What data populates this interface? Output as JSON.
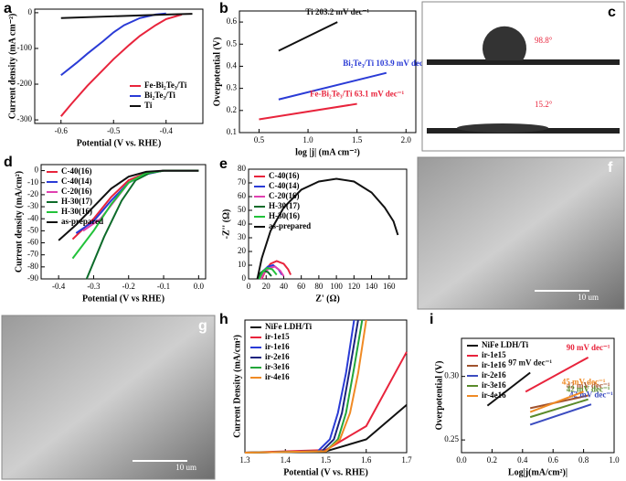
{
  "chart_data": [
    {
      "type": "line",
      "label": "a",
      "xlabel": "Potential (V vs. RHE)",
      "ylabel": "Current density (mA cm⁻²)",
      "xlim": [
        -0.65,
        -0.33
      ],
      "xticks": [
        -0.6,
        -0.5,
        -0.4
      ],
      "ylim": [
        -310,
        10
      ],
      "yticks": [
        0,
        -100,
        -200,
        -300
      ],
      "legend": "lower-right",
      "series": [
        {
          "name": "Fe-Bi₂Te₃/Ti",
          "color": "#e8243c",
          "x": [
            -0.6,
            -0.58,
            -0.55,
            -0.52,
            -0.5,
            -0.47,
            -0.45,
            -0.42,
            -0.4,
            -0.37
          ],
          "values": [
            -290,
            -255,
            -205,
            -160,
            -130,
            -90,
            -65,
            -35,
            -18,
            -5
          ]
        },
        {
          "name": "Bi₂Te₃/Ti",
          "color": "#2a3bd6",
          "x": [
            -0.6,
            -0.57,
            -0.55,
            -0.52,
            -0.5,
            -0.48,
            -0.45,
            -0.42,
            -0.4
          ],
          "values": [
            -175,
            -140,
            -115,
            -80,
            -55,
            -35,
            -15,
            -5,
            -2
          ]
        },
        {
          "name": "Ti",
          "color": "#111111",
          "x": [
            -0.6,
            -0.5,
            -0.4,
            -0.35
          ],
          "values": [
            -15,
            -10,
            -5,
            -3
          ]
        }
      ]
    },
    {
      "type": "line",
      "label": "b",
      "xlabel": "log |j| (mA cm⁻²)",
      "ylabel": "Overpotential (V)",
      "xlim": [
        0.3,
        2.1
      ],
      "xticks": [
        0.5,
        {
          "value": 1,
          "label": "1.0"
        },
        1.5,
        {
          "value": 2,
          "label": "2.0"
        }
      ],
      "ylim": [
        0.1,
        0.65
      ],
      "yticks": [
        0.1,
        0.2,
        0.3,
        0.4,
        0.5,
        0.6
      ],
      "series": [
        {
          "color": "#111111",
          "x": [
            0.7,
            1.3
          ],
          "values": [
            0.47,
            0.6
          ]
        },
        {
          "color": "#2a3bd6",
          "x": [
            0.7,
            1.8
          ],
          "values": [
            0.25,
            0.37
          ]
        },
        {
          "color": "#e8243c",
          "x": [
            0.5,
            1.5
          ],
          "values": [
            0.16,
            0.23
          ]
        }
      ],
      "annotations": [
        "Ti 203.2 mV dec⁻¹",
        "Bi₂Te₃/Ti 103.9 mV dec⁻¹",
        "Fe-Bi₂Te₃/Ti 63.1 mV dec⁻¹"
      ]
    },
    {
      "type": "line",
      "label": "d",
      "xlabel": "Potential (V vs RHE)",
      "ylabel": "Current density (mA/cm²)",
      "xlim": [
        -0.45,
        0.02
      ],
      "xticks": [
        -0.4,
        -0.3,
        -0.2,
        -0.1,
        {
          "value": 0,
          "label": "0.0"
        }
      ],
      "ylim": [
        -90,
        5
      ],
      "yticks": [
        0,
        -10,
        -20,
        -30,
        -40,
        -50,
        -60,
        -70,
        -80,
        -90
      ],
      "legend": "upper-left",
      "series": [
        {
          "name": "C-40(16)",
          "color": "#e8243c",
          "x": [
            -0.36,
            -0.3,
            -0.25,
            -0.2,
            -0.15,
            -0.1,
            0
          ],
          "values": [
            -57,
            -40,
            -22,
            -8,
            -2,
            0,
            0
          ]
        },
        {
          "name": "C-40(14)",
          "color": "#2a3bd6",
          "x": [
            -0.35,
            -0.3,
            -0.25,
            -0.2,
            -0.15,
            -0.1,
            0
          ],
          "values": [
            -52,
            -42,
            -25,
            -10,
            -3,
            0,
            0
          ]
        },
        {
          "name": "C-20(16)",
          "color": "#e040b0",
          "x": [
            -0.33,
            -0.28,
            -0.24,
            -0.2,
            -0.15,
            -0.1,
            0
          ],
          "values": [
            -50,
            -40,
            -25,
            -10,
            -2,
            0,
            0
          ]
        },
        {
          "name": "H-30(17)",
          "color": "#0d6b2a",
          "x": [
            -0.32,
            -0.27,
            -0.22,
            -0.18,
            -0.14,
            -0.1,
            0
          ],
          "values": [
            -90,
            -55,
            -25,
            -8,
            -2,
            0,
            0
          ]
        },
        {
          "name": "H-30(16)",
          "color": "#22c23a",
          "x": [
            -0.36,
            -0.3,
            -0.25,
            -0.2,
            -0.15,
            -0.1,
            0
          ],
          "values": [
            -73,
            -50,
            -28,
            -10,
            -2,
            0,
            0
          ]
        },
        {
          "name": "as-prepared",
          "color": "#111111",
          "x": [
            -0.4,
            -0.35,
            -0.3,
            -0.25,
            -0.2,
            -0.15,
            -0.1,
            0
          ],
          "values": [
            -58,
            -45,
            -30,
            -15,
            -5,
            -1,
            0,
            0
          ]
        }
      ]
    },
    {
      "type": "line",
      "label": "e",
      "xlabel": "Z' (Ω)",
      "ylabel": "-Z'' (Ω)",
      "xlim": [
        0,
        180
      ],
      "xticks": [
        0,
        20,
        40,
        60,
        80,
        100,
        120,
        140,
        160
      ],
      "ylim": [
        0,
        80
      ],
      "yticks": [
        0,
        10,
        20,
        30,
        40,
        50,
        60,
        70,
        80
      ],
      "legend": "upper-left",
      "series": [
        {
          "name": "C-40(16)",
          "color": "#e8243c",
          "x": [
            15,
            20,
            25,
            32,
            40,
            45,
            48
          ],
          "values": [
            0,
            7,
            11,
            13,
            11,
            7,
            3
          ]
        },
        {
          "name": "C-40(14)",
          "color": "#2a3bd6",
          "x": [
            12,
            17,
            22,
            28,
            34,
            38
          ],
          "values": [
            0,
            6,
            9,
            10,
            7,
            3
          ]
        },
        {
          "name": "C-20(16)",
          "color": "#e040b0",
          "x": [
            14,
            18,
            24,
            30,
            36,
            40
          ],
          "values": [
            0,
            5,
            8,
            9,
            6,
            2
          ]
        },
        {
          "name": "H-30(17)",
          "color": "#0d6b2a",
          "x": [
            10,
            13,
            17,
            22,
            26
          ],
          "values": [
            0,
            4,
            6,
            5,
            2
          ]
        },
        {
          "name": "H-30(16)",
          "color": "#22c23a",
          "x": [
            12,
            16,
            21,
            27,
            32
          ],
          "values": [
            0,
            5,
            8,
            7,
            3
          ]
        },
        {
          "name": "as-prepared",
          "color": "#111111",
          "x": [
            10,
            15,
            25,
            40,
            60,
            80,
            100,
            120,
            140,
            155,
            165,
            170
          ],
          "values": [
            0,
            15,
            35,
            52,
            65,
            71,
            73,
            71,
            63,
            52,
            42,
            32
          ]
        }
      ]
    },
    {
      "type": "line",
      "label": "h",
      "xlabel": "Potential (V vs. RHE)",
      "ylabel": "Current Density (mA/cm²)",
      "xlim": [
        1.3,
        1.7
      ],
      "xticks": [
        1.3,
        1.4,
        1.5,
        1.6,
        1.7
      ],
      "ylim": [
        0,
        50
      ],
      "legend": "upper-left",
      "series": [
        {
          "name": "NiFe LDH/Ti",
          "color": "#111111",
          "x": [
            1.3,
            1.5,
            1.6,
            1.7
          ],
          "values": [
            0,
            0.5,
            5,
            18
          ]
        },
        {
          "name": "ir-1e15",
          "color": "#e8243c",
          "x": [
            1.3,
            1.5,
            1.6,
            1.7
          ],
          "values": [
            0,
            1,
            10,
            38
          ]
        },
        {
          "name": "ir-1e16",
          "color": "#2a3bd6",
          "x": [
            1.3,
            1.48,
            1.51,
            1.53,
            1.55,
            1.57
          ],
          "values": [
            0,
            0.5,
            5,
            15,
            30,
            50
          ]
        },
        {
          "name": "ir-2e16",
          "color": "#1a237e",
          "x": [
            1.3,
            1.49,
            1.52,
            1.54,
            1.56,
            1.58
          ],
          "values": [
            0,
            0.5,
            5,
            15,
            32,
            50
          ]
        },
        {
          "name": "ir-3e16",
          "color": "#22a63a",
          "x": [
            1.3,
            1.5,
            1.53,
            1.55,
            1.57,
            1.59
          ],
          "values": [
            0,
            0.5,
            5,
            15,
            32,
            50
          ]
        },
        {
          "name": "ir-4e16",
          "color": "#f08a24",
          "x": [
            1.3,
            1.5,
            1.535,
            1.56,
            1.58,
            1.6
          ],
          "values": [
            0,
            0.5,
            5,
            15,
            30,
            50
          ]
        }
      ]
    },
    {
      "type": "line",
      "label": "i",
      "xlabel": "Log|j(mA/cm²)|",
      "ylabel": "Overpotential (V)",
      "xlim": [
        0,
        1
      ],
      "xticks": [
        {
          "value": 0,
          "label": "0.0"
        },
        0.2,
        0.4,
        0.6,
        0.8,
        {
          "value": 1,
          "label": "1.0"
        }
      ],
      "ylim": [
        0.24,
        0.33
      ],
      "yticks": [
        0.25,
        {
          "value": 0.3,
          "label": "0.30"
        }
      ],
      "legend": "upper-left",
      "series": [
        {
          "name": "NiFe LDH/Ti",
          "color": "#111111",
          "x": [
            0.17,
            0.45
          ],
          "values": [
            0.277,
            0.303
          ]
        },
        {
          "name": "ir-1e15",
          "color": "#e8243c",
          "x": [
            0.42,
            0.83
          ],
          "values": [
            0.288,
            0.315
          ]
        },
        {
          "name": "ir-1e16",
          "color": "#a0522d",
          "x": [
            0.45,
            0.83
          ],
          "values": [
            0.275,
            0.285
          ]
        },
        {
          "name": "ir-2e16",
          "color": "#3b4cc0",
          "x": [
            0.45,
            0.85
          ],
          "values": [
            0.262,
            0.278
          ]
        },
        {
          "name": "ir-3e16",
          "color": "#5a8a2a",
          "x": [
            0.45,
            0.83
          ],
          "values": [
            0.268,
            0.282
          ]
        },
        {
          "name": "ir-4e16",
          "color": "#f08a24",
          "x": [
            0.45,
            0.8
          ],
          "values": [
            0.272,
            0.288
          ]
        }
      ],
      "annotations": [
        "97 mV dec⁻¹",
        "90 mV dec⁻¹",
        "42 mV dec⁻¹",
        "42 mV dec⁻¹",
        "42 mV dec⁻¹",
        "45 mV dec⁻¹"
      ]
    }
  ],
  "images": [
    {
      "label": "c",
      "texts": [
        "98.8°",
        "15.2°"
      ]
    },
    {
      "label": "f",
      "texts": [
        "10 um"
      ]
    },
    {
      "label": "g",
      "texts": [
        "10 um"
      ]
    }
  ]
}
